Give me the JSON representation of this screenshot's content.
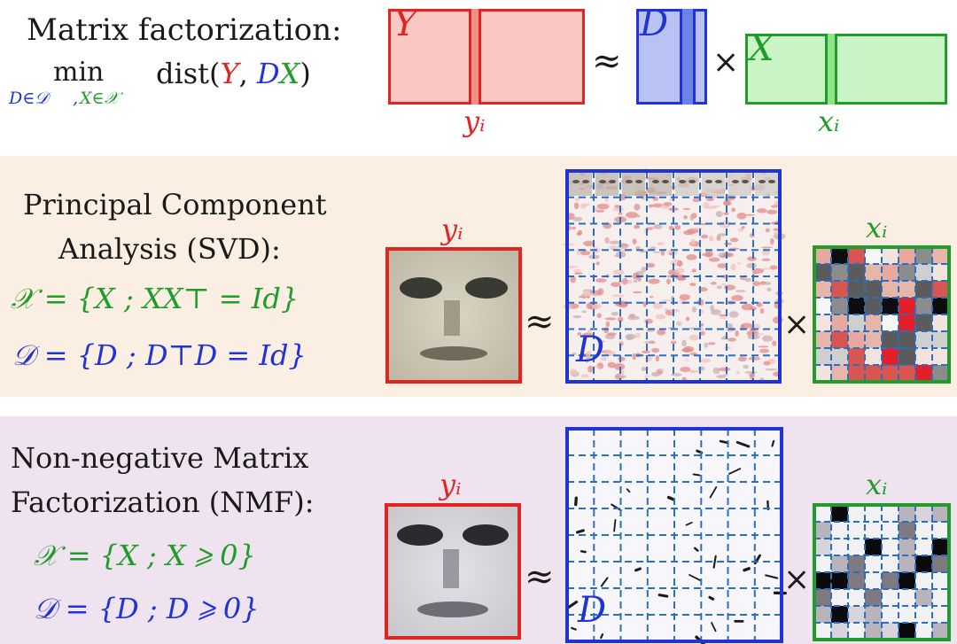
{
  "header": {
    "title": "Matrix factorization:",
    "objective": {
      "op": "min",
      "dist_fn": "dist",
      "subscript_d": "D∈𝒟",
      "subscript_comma": ",",
      "subscript_x": "X∈𝒳",
      "Y": "Y",
      "D": "D",
      "X": "X"
    },
    "diagram": {
      "Y_label": "Y",
      "D_label": "D",
      "X_label": "X",
      "approx": "≈",
      "times": "×",
      "yi_label": "yᵢ",
      "xi_label": "xᵢ"
    }
  },
  "pca": {
    "title_line1": "Principal Component",
    "title_line2": "Analysis (SVD):",
    "x_constraint": "𝒳 = {X ; XX⊤ = Id}",
    "d_constraint": "𝒟 = {D ; D⊤D = Id}",
    "yi_label": "yᵢ",
    "xi_label": "xᵢ",
    "D_label": "D",
    "approx": "≈",
    "times": "×"
  },
  "nmf": {
    "title_line1": "Non-negative Matrix",
    "title_line2": "Factorization (NMF):",
    "x_constraint": "𝒳 = {X ; X ⩾ 0}",
    "d_constraint": "𝒟 = {D ; D ⩾ 0}",
    "yi_label": "yᵢ",
    "xi_label": "xᵢ",
    "D_label": "D",
    "approx": "≈",
    "times": "×"
  },
  "colors": {
    "red": "#e0241f",
    "blue": "#1f33d6",
    "green": "#219b2a",
    "pca_bg": "#fbeee3",
    "nmf_bg": "#efe3ef"
  }
}
